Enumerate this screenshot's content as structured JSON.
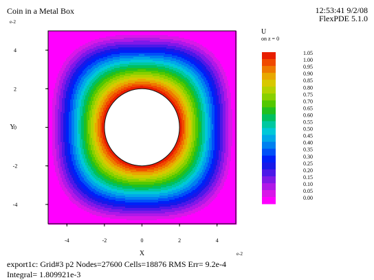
{
  "header": {
    "title": "Coin in a Metal Box",
    "time": "12:53:41 9/2/08",
    "version": "FlexPDE 5.1.0"
  },
  "colorbar": {
    "variable": "U",
    "surface": "on z = 0",
    "levels": [
      "1.05",
      "1.00",
      "0.95",
      "0.90",
      "0.85",
      "0.80",
      "0.75",
      "0.70",
      "0.65",
      "0.60",
      "0.55",
      "0.50",
      "0.45",
      "0.40",
      "0.35",
      "0.30",
      "0.25",
      "0.20",
      "0.15",
      "0.10",
      "0.05",
      "0.00"
    ],
    "colors": [
      "#e81e00",
      "#f04a00",
      "#ee7a00",
      "#e8a800",
      "#d8c800",
      "#b4d200",
      "#88d000",
      "#52c800",
      "#20c020",
      "#00c060",
      "#00c8a0",
      "#00c8d8",
      "#00a8e8",
      "#0080f0",
      "#0050f8",
      "#0020f8",
      "#1818e8",
      "#4c18e8",
      "#8018e8",
      "#b018e8",
      "#d818e8",
      "#ff00ff"
    ]
  },
  "chart_data": {
    "type": "heatmap",
    "title": "Coin in a Metal Box",
    "xlabel": "X",
    "ylabel": "Y",
    "axis_exponent_label": "e-2",
    "xlim": [
      -5,
      5
    ],
    "ylim": [
      -5,
      5
    ],
    "x_ticks": [
      -4,
      -2,
      0,
      2,
      4
    ],
    "y_ticks": [
      -4,
      -2,
      0,
      2,
      4
    ],
    "coin_radius": 2,
    "box_half_width": 5,
    "value_range": [
      0,
      1.05
    ]
  },
  "footer": {
    "line1": "export1c:  Grid#3  p2  Nodes=27600 Cells=18876 RMS Err= 9.2e-4",
    "line2": "Integral=  1.809921e-3"
  }
}
